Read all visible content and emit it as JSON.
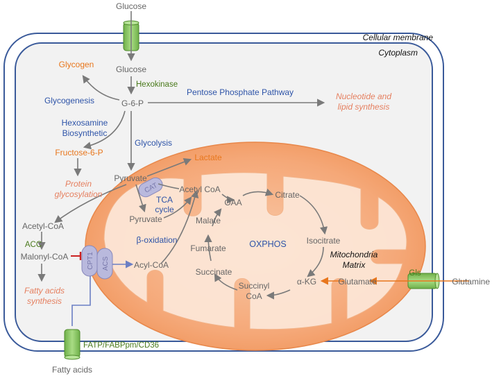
{
  "labels": {
    "membrane": "Cellular membrane",
    "cytoplasm": "Cytoplasm",
    "mito_line1": "Mitochondria",
    "mito_line2": "Matrix"
  },
  "metabolites": {
    "glucose_out": "Glucose",
    "glucose_in": "Glucose",
    "glycogen": "Glycogen",
    "g6p": "G-6-P",
    "f6p": "Fructose-6-P",
    "pyruvate_cyto": "Pyruvate",
    "lactate": "Lactate",
    "acetyl_coa_cyto": "Acetyl-CoA",
    "malonyl_coa": "Malonyl-CoA",
    "pyruvate_mito": "Pyruvate",
    "acetyl_coa_mito": "Acetyl CoA",
    "acyl_coa": "Acyl-CoA",
    "oaa": "OAA",
    "citrate": "Citrate",
    "malate": "Malate",
    "isocitrate": "Isocitrate",
    "fumarate": "Fumarate",
    "succinate": "Succinate",
    "succinyl_1": "Succinyl",
    "succinyl_2": "CoA",
    "akg": "α-KG",
    "glutamate": "Glutamate",
    "glutamine": "Glutamine",
    "fatty_acids": "Fatty acids"
  },
  "pathways": {
    "glycogenesis": "Glycogenesis",
    "ppp": "Pentose Phosphate Pathway",
    "hexosamine_1": "Hexosamine",
    "hexosamine_2": "Biosynthetic",
    "glycolysis": "Glycolysis",
    "tca_1": "TCA",
    "tca_2": "cycle",
    "beta_ox": "β-oxidation",
    "oxphos": "OXPHOS"
  },
  "outcomes": {
    "nucleotide_1": "Nucleotide and",
    "nucleotide_2": "lipid synthesis",
    "protein_1": "Protein",
    "protein_2": "glycosylation",
    "fatty_1": "Fatty acids",
    "fatty_2": "synthesis"
  },
  "enzymes": {
    "hexokinase": "Hexokinase",
    "acc": "ACC",
    "gls": "Gls",
    "fatp": "FATP/FABPpm/CD36"
  },
  "transporters": {
    "cat": "CAT",
    "cpt1": "CPT1",
    "acs": "ACS"
  },
  "colors": {
    "membrane": "#3a5a9a",
    "cytoplasm_fill": "#f2f2f2",
    "mito_fill": "#f5a070",
    "channel_fill": "#8fcc6a",
    "transporter_fill": "#b9b9dd",
    "pathway_text": "#2e54a8",
    "metabolite_text": "#666666",
    "highlight_text": "#e8761c",
    "outcome_text": "#e57f5f",
    "enzyme_text": "#4a7a1c",
    "inhibit": "#cc2222"
  }
}
